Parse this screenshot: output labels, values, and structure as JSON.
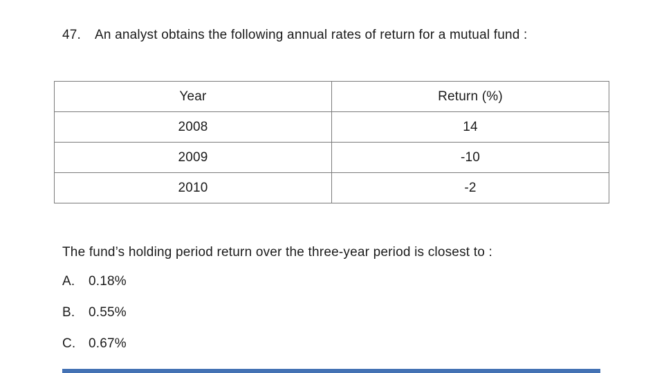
{
  "question": {
    "number": "47.",
    "text": "An analyst obtains the following annual rates of return for a mutual fund :"
  },
  "table": {
    "headers": [
      "Year",
      "Return (%)"
    ],
    "rows": [
      [
        "2008",
        "14"
      ],
      [
        "2009",
        "-10"
      ],
      [
        "2010",
        "-2"
      ]
    ]
  },
  "prompt": "The fund’s holding period return over the three-year period is closest to :",
  "options": [
    {
      "letter": "A.",
      "value": "0.18%"
    },
    {
      "letter": "B.",
      "value": "0.55%"
    },
    {
      "letter": "C.",
      "value": "0.67%"
    }
  ],
  "colors": {
    "accent_bar": "#4472b4",
    "table_border": "#7a7a7a",
    "text": "#1a1a1a"
  }
}
